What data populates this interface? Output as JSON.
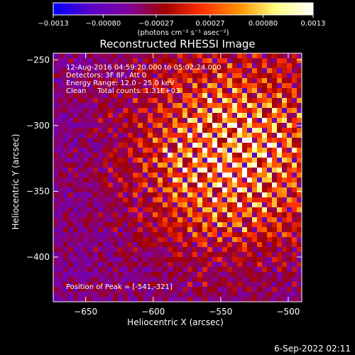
{
  "chart_data": {
    "type": "heatmap",
    "title": "Reconstructed RHESSI Image",
    "xlabel": "Heliocentric X (arcsec)",
    "ylabel": "Heliocentric Y (arcsec)",
    "xlim": [
      -674,
      -490
    ],
    "ylim": [
      -434,
      -245
    ],
    "x_ticks": [
      -650,
      -600,
      -550,
      -500
    ],
    "x_tick_labels": [
      "−650",
      "−600",
      "−550",
      "−500"
    ],
    "y_ticks": [
      -250,
      -300,
      -350,
      -400
    ],
    "y_tick_labels": [
      "−250",
      "−300",
      "−350",
      "−400"
    ],
    "colorbar": {
      "range": [
        -0.0013,
        0.0013
      ],
      "tick_values": [
        -0.0013,
        -0.0008,
        -0.00027,
        0.00027,
        0.0008,
        0.0013
      ],
      "tick_labels": [
        "−0.0013",
        "−0.00080",
        "−0.00027",
        "0.00027",
        "0.00080",
        "0.0013"
      ],
      "unit_label": "(photons cm⁻² s⁻¹ asec⁻²)",
      "colors": [
        "#0000ff",
        "#5a00c8",
        "#8000a0",
        "#a00000",
        "#ff3000",
        "#ff9000",
        "#ffff80",
        "#ffffff"
      ]
    },
    "peak": {
      "x": -541,
      "y": -321
    },
    "annotations": [
      "12-Aug-2016 04:59:20.000 to 05:02:24.000",
      "Detectors: 3F 8F, Att 0",
      "Energy Range: 12.0 - 25.0 keV",
      "Clean     Total counts: 1.31E+03"
    ],
    "peak_label": "Position of Peak = [-541,-321]",
    "grid": false
  },
  "footer": {
    "timestamp": "6-Sep-2022 02:11"
  }
}
